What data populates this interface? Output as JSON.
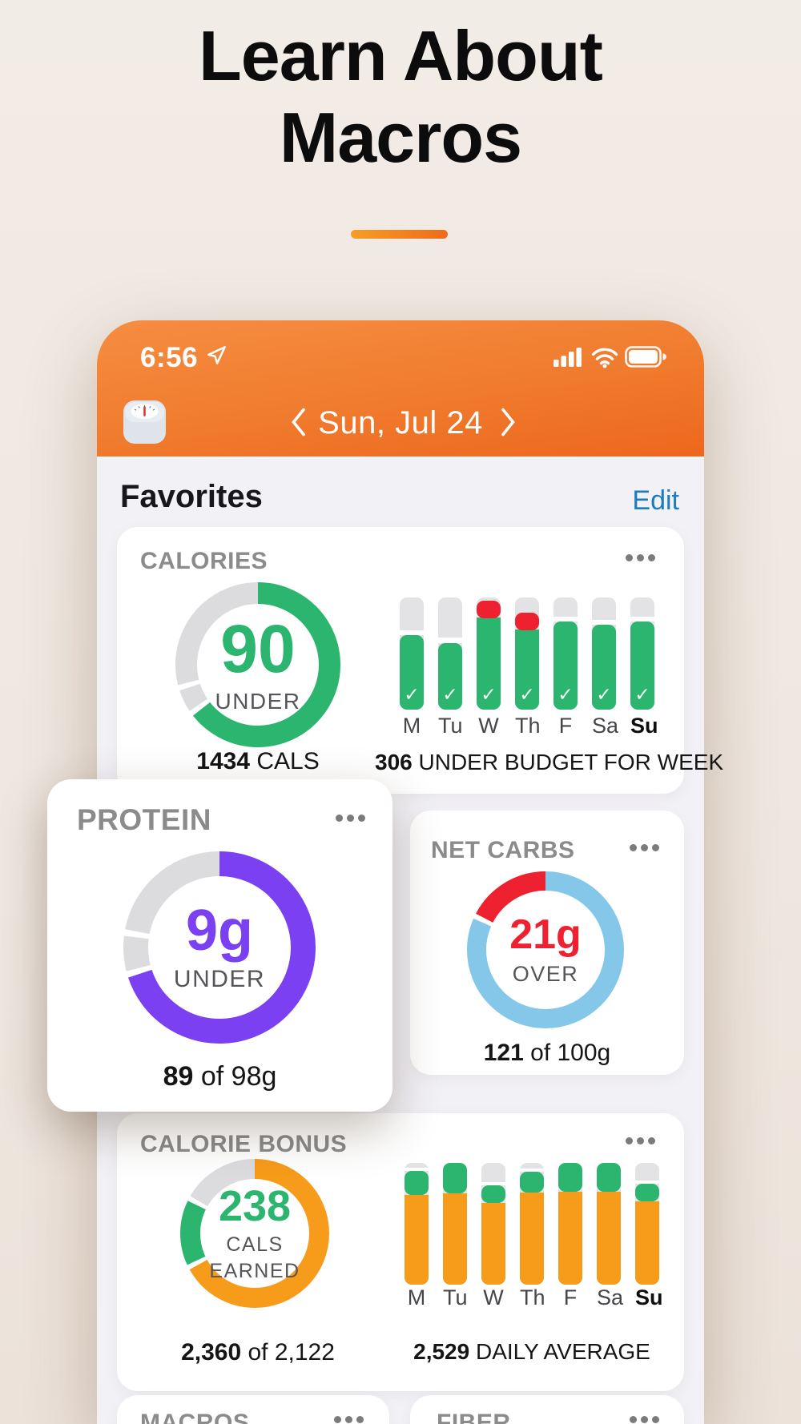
{
  "colors": {
    "green": "#2bb56e",
    "red": "#ee2130",
    "purple": "#7b40f2",
    "blue": "#84c7e9",
    "orange": "#f79b1b",
    "donut_gray": "#dcdcde",
    "track_gray": "#e3e3e6",
    "white": "#ffffff",
    "header_orange_top": "#f68d41",
    "header_orange_bottom": "#ed671c",
    "edit_blue": "#1d7cbd"
  },
  "hero": {
    "line1": "Learn About",
    "line2": "Macros"
  },
  "status_bar": {
    "time": "6:56"
  },
  "nav": {
    "date": "Sun, Jul 24"
  },
  "favorites": {
    "heading": "Favorites",
    "edit_label": "Edit"
  },
  "cards": {
    "calories": {
      "title": "CALORIES",
      "donut": {
        "value": "90",
        "label": "UNDER",
        "segments": [
          {
            "color": "#2bb56e",
            "frac": 0.655
          },
          {
            "color": "#dcdcde",
            "frac": 0.055
          },
          {
            "color": "#dcdcde",
            "frac": 0.29
          }
        ]
      },
      "caption": {
        "bold": "1434",
        "rest": " CALS"
      },
      "week": {
        "checks": true,
        "caption": {
          "bold": "306",
          "rest": " UNDER BUDGET FOR WEEK"
        },
        "bars": [
          {
            "day": "M",
            "fills": [
              {
                "c": "green",
                "b": 0,
                "t": 0.664,
                "r": "both"
              },
              {
                "c": "white",
                "b": 0.664,
                "t": 0.71
              }
            ]
          },
          {
            "day": "Tu",
            "fills": [
              {
                "c": "green",
                "b": 0,
                "t": 0.593,
                "r": "both"
              },
              {
                "c": "white",
                "b": 0.593,
                "t": 0.64
              }
            ]
          },
          {
            "day": "W",
            "fills": [
              {
                "c": "green",
                "b": 0,
                "t": 0.82,
                "r": "bottom"
              },
              {
                "c": "red",
                "b": 0.815,
                "t": 0.975,
                "r": "both"
              }
            ]
          },
          {
            "day": "Th",
            "fills": [
              {
                "c": "green",
                "b": 0,
                "t": 0.715,
                "r": "bottom"
              },
              {
                "c": "red",
                "b": 0.71,
                "t": 0.862,
                "r": "both"
              }
            ]
          },
          {
            "day": "F",
            "fills": [
              {
                "c": "green",
                "b": 0,
                "t": 0.786,
                "r": "both"
              },
              {
                "c": "white",
                "b": 0.786,
                "t": 0.83
              }
            ]
          },
          {
            "day": "Sa",
            "fills": [
              {
                "c": "green",
                "b": 0,
                "t": 0.757,
                "r": "both"
              },
              {
                "c": "white",
                "b": 0.757,
                "t": 0.8
              }
            ]
          },
          {
            "day": "Su",
            "bold": true,
            "fills": [
              {
                "c": "green",
                "b": 0,
                "t": 0.786,
                "r": "both"
              },
              {
                "c": "white",
                "b": 0.786,
                "t": 0.83
              }
            ]
          }
        ]
      }
    },
    "protein": {
      "title": "PROTEIN",
      "donut": {
        "value": "9g",
        "label": "UNDER",
        "segments": [
          {
            "color": "#7b40f2",
            "frac": 0.71
          },
          {
            "color": "#dcdcde",
            "frac": 0.07
          },
          {
            "color": "#dcdcde",
            "frac": 0.22
          }
        ]
      },
      "caption": {
        "bold": "89",
        "rest": " of 98g"
      }
    },
    "net_carbs": {
      "title": "NET CARBS",
      "donut": {
        "value": "21g",
        "label": "OVER",
        "segments": [
          {
            "color": "#84c7e9",
            "frac": 0.826
          },
          {
            "color": "#ee2130",
            "frac": 0.174
          }
        ]
      },
      "caption": {
        "bold": "121",
        "rest": " of 100g"
      }
    },
    "calorie_bonus": {
      "title": "CALORIE BONUS",
      "donut": {
        "value": "238",
        "label1": "CALS",
        "label2": "EARNED",
        "segments": [
          {
            "color": "#f79b1b",
            "frac": 0.68
          },
          {
            "color": "#2bb56e",
            "frac": 0.153
          },
          {
            "color": "#dcdcde",
            "frac": 0.167
          }
        ]
      },
      "caption": {
        "bold": "2,360",
        "rest": " of 2,122"
      },
      "week": {
        "checks": false,
        "caption": {
          "bold": "2,529",
          "rest": " DAILY AVERAGE"
        },
        "bars": [
          {
            "day": "M",
            "fills": [
              {
                "c": "orange",
                "b": 0,
                "t": 0.737,
                "r": "bottom"
              },
              {
                "c": "green",
                "b": 0.737,
                "t": 0.934,
                "r": "both"
              },
              {
                "c": "white",
                "b": 0.934,
                "t": 0.96
              }
            ]
          },
          {
            "day": "Tu",
            "fills": [
              {
                "c": "orange",
                "b": 0,
                "t": 0.75,
                "r": "bottom"
              },
              {
                "c": "green",
                "b": 0.75,
                "t": 1,
                "r": "both"
              }
            ]
          },
          {
            "day": "W",
            "fills": [
              {
                "c": "orange",
                "b": 0,
                "t": 0.671,
                "r": "bottom"
              },
              {
                "c": "green",
                "b": 0.671,
                "t": 0.816,
                "r": "both"
              },
              {
                "c": "white",
                "b": 0.816,
                "t": 0.845
              }
            ]
          },
          {
            "day": "Th",
            "fills": [
              {
                "c": "orange",
                "b": 0,
                "t": 0.756,
                "r": "bottom"
              },
              {
                "c": "green",
                "b": 0.756,
                "t": 0.928,
                "r": "both"
              },
              {
                "c": "white",
                "b": 0.928,
                "t": 0.955
              }
            ]
          },
          {
            "day": "F",
            "fills": [
              {
                "c": "orange",
                "b": 0,
                "t": 0.763,
                "r": "bottom"
              },
              {
                "c": "green",
                "b": 0.763,
                "t": 1,
                "r": "both"
              }
            ]
          },
          {
            "day": "Sa",
            "fills": [
              {
                "c": "orange",
                "b": 0,
                "t": 0.763,
                "r": "bottom"
              },
              {
                "c": "green",
                "b": 0.763,
                "t": 1,
                "r": "both"
              }
            ]
          },
          {
            "day": "Su",
            "bold": true,
            "fills": [
              {
                "c": "orange",
                "b": 0,
                "t": 0.684,
                "r": "bottom"
              },
              {
                "c": "green",
                "b": 0.684,
                "t": 0.829,
                "r": "both"
              },
              {
                "c": "white",
                "b": 0.829,
                "t": 0.858
              }
            ]
          }
        ]
      }
    },
    "macros": {
      "title": "MACROS"
    },
    "fiber": {
      "title": "FIBER"
    }
  },
  "chart_data": [
    {
      "id": "calories-donut",
      "type": "pie",
      "title": "CALORIES",
      "center_value": 90,
      "center_label": "UNDER",
      "caption": "1434 CALS",
      "segments": [
        {
          "name": "progress",
          "frac": 0.655,
          "color": "#2bb56e"
        },
        {
          "name": "remaining",
          "frac": 0.345,
          "color": "#dcdcde"
        }
      ]
    },
    {
      "id": "calories-week",
      "type": "bar",
      "categories": [
        "M",
        "Tu",
        "W",
        "Th",
        "F",
        "Sa",
        "Su"
      ],
      "fill_fraction": [
        0.66,
        0.59,
        0.98,
        0.86,
        0.79,
        0.76,
        0.79
      ],
      "over_budget": [
        false,
        false,
        true,
        true,
        false,
        false,
        false
      ],
      "all_days_checked": true,
      "caption": "306 UNDER BUDGET FOR WEEK",
      "ylim": [
        0,
        1
      ],
      "grid": false
    },
    {
      "id": "protein-donut",
      "type": "pie",
      "title": "PROTEIN",
      "center_value": "9g",
      "center_label": "UNDER",
      "caption": "89 of 98g",
      "consumed": 89,
      "budget": 98,
      "segments": [
        {
          "name": "progress",
          "frac": 0.71,
          "color": "#7b40f2"
        },
        {
          "name": "remaining",
          "frac": 0.29,
          "color": "#dcdcde"
        }
      ]
    },
    {
      "id": "net-carbs-donut",
      "type": "pie",
      "title": "NET CARBS",
      "center_value": "21g",
      "center_label": "OVER",
      "caption": "121 of 100g",
      "consumed": 121,
      "budget": 100,
      "segments": [
        {
          "name": "within budget",
          "frac": 0.826,
          "color": "#84c7e9"
        },
        {
          "name": "over",
          "frac": 0.174,
          "color": "#ee2130"
        }
      ]
    },
    {
      "id": "calorie-bonus-donut",
      "type": "pie",
      "title": "CALORIE BONUS",
      "center_value": 238,
      "center_label": "CALS EARNED",
      "caption": "2,360 of 2,122",
      "consumed": 2360,
      "budget": 2122,
      "segments": [
        {
          "name": "used",
          "frac": 0.68,
          "color": "#f79b1b"
        },
        {
          "name": "earned",
          "frac": 0.153,
          "color": "#2bb56e"
        },
        {
          "name": "remaining",
          "frac": 0.167,
          "color": "#dcdcde"
        }
      ]
    },
    {
      "id": "calorie-bonus-week",
      "type": "bar",
      "categories": [
        "M",
        "Tu",
        "W",
        "Th",
        "F",
        "Sa",
        "Su"
      ],
      "base_fraction": [
        0.737,
        0.75,
        0.671,
        0.756,
        0.763,
        0.763,
        0.684
      ],
      "bonus_cap_fraction": [
        0.197,
        0.25,
        0.145,
        0.172,
        0.237,
        0.237,
        0.145
      ],
      "caption": "2,529 DAILY AVERAGE",
      "ylim": [
        0,
        1
      ],
      "grid": false
    }
  ]
}
